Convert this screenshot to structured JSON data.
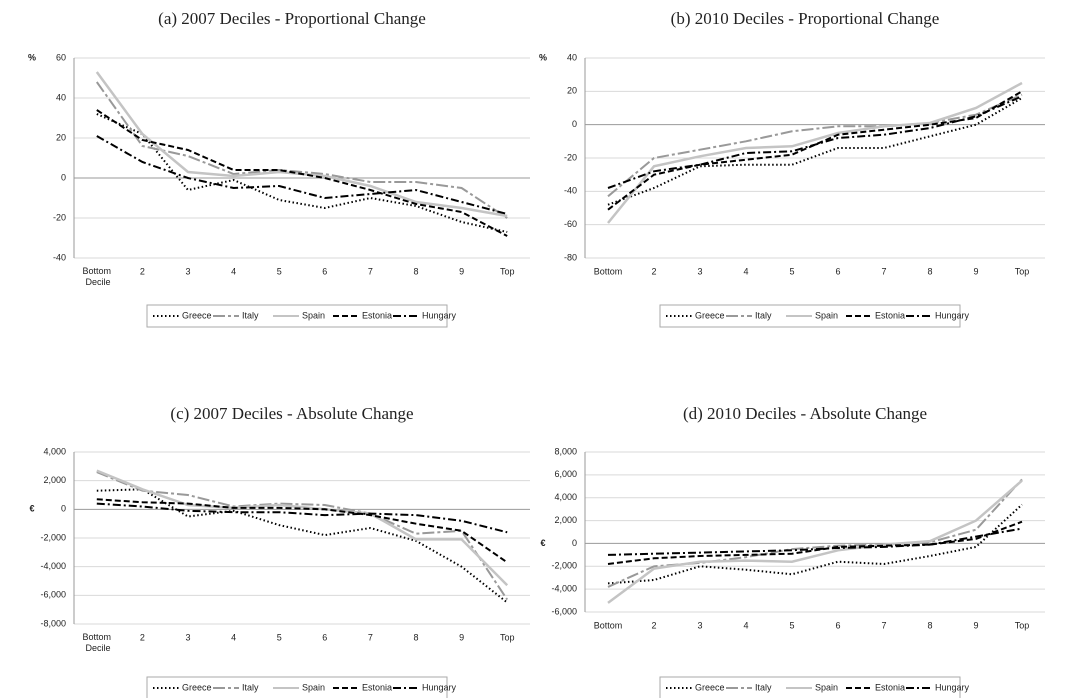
{
  "chart_data": [
    {
      "type": "line",
      "title": "(a) 2007 Deciles - Proportional Change",
      "ylabel": "%",
      "ylabel_position": "top",
      "categories": [
        "Bottom Decile",
        "2",
        "3",
        "4",
        "5",
        "6",
        "7",
        "8",
        "9",
        "Top"
      ],
      "ylim": [
        -40,
        60
      ],
      "yticks": [
        -40,
        -20,
        0,
        20,
        40,
        60
      ],
      "grid": true,
      "legend": "bottom",
      "series": [
        {
          "name": "Greece",
          "color": "#000000",
          "dash": "1.5,2.5",
          "values": [
            32,
            22,
            -6,
            -1,
            -11,
            -15,
            -10,
            -14,
            -22,
            -27
          ]
        },
        {
          "name": "Italy",
          "color": "#999999",
          "dash": "12,3,3,3",
          "values": [
            48,
            16,
            11,
            2,
            4,
            2,
            -2,
            -2,
            -5,
            -20
          ]
        },
        {
          "name": "Spain",
          "color": "#c4c4c4",
          "dash": "none",
          "values": [
            53,
            22,
            3,
            1,
            3,
            1,
            -4,
            -12,
            -15,
            -19
          ]
        },
        {
          "name": "Estonia",
          "color": "#000000",
          "dash": "6,3",
          "values": [
            34,
            19,
            14,
            4,
            4,
            0,
            -6,
            -13,
            -17,
            -29
          ]
        },
        {
          "name": "Hungary",
          "color": "#000000",
          "dash": "8,3,2,3",
          "values": [
            21,
            8,
            0,
            -5,
            -4,
            -10,
            -8,
            -6,
            -12,
            -18
          ]
        }
      ]
    },
    {
      "type": "line",
      "title": "(b) 2010 Deciles - Proportional Change",
      "ylabel": "%",
      "ylabel_position": "top",
      "categories": [
        "Bottom",
        "2",
        "3",
        "4",
        "5",
        "6",
        "7",
        "8",
        "9",
        "Top"
      ],
      "ylim": [
        -80,
        40
      ],
      "yticks": [
        -80,
        -60,
        -40,
        -20,
        0,
        20,
        40
      ],
      "grid": true,
      "legend": "bottom",
      "series": [
        {
          "name": "Greece",
          "color": "#000000",
          "dash": "1.5,2.5",
          "values": [
            -48,
            -38,
            -25,
            -24,
            -24,
            -14,
            -14,
            -7,
            0,
            16
          ]
        },
        {
          "name": "Italy",
          "color": "#999999",
          "dash": "12,3,3,3",
          "values": [
            -43,
            -20,
            -15,
            -10,
            -4,
            -1,
            -1,
            1,
            6,
            18
          ]
        },
        {
          "name": "Spain",
          "color": "#c4c4c4",
          "dash": "none",
          "values": [
            -59,
            -25,
            -19,
            -14,
            -13,
            -5,
            -1,
            1,
            10,
            25
          ]
        },
        {
          "name": "Estonia",
          "color": "#000000",
          "dash": "6,3",
          "values": [
            -51,
            -30,
            -24,
            -21,
            -18,
            -6,
            -3,
            0,
            4,
            20
          ]
        },
        {
          "name": "Hungary",
          "color": "#000000",
          "dash": "8,3,2,3",
          "values": [
            -38,
            -28,
            -24,
            -17,
            -16,
            -8,
            -6,
            -2,
            5,
            17
          ]
        }
      ]
    },
    {
      "type": "line",
      "title": "(c) 2007 Deciles - Absolute Change",
      "ylabel": "€",
      "ylabel_position": "zero",
      "categories": [
        "Bottom Decile",
        "2",
        "3",
        "4",
        "5",
        "6",
        "7",
        "8",
        "9",
        "Top"
      ],
      "ylim": [
        -8000,
        4000
      ],
      "yticks": [
        {
          "value": -8000,
          "label": "-8,000"
        },
        {
          "value": -6000,
          "label": "-6,000"
        },
        {
          "value": -4000,
          "label": "-4,000"
        },
        {
          "value": -2000,
          "label": "-2,000"
        },
        0,
        {
          "value": 2000,
          "label": "2,000"
        },
        {
          "value": 4000,
          "label": "4,000"
        }
      ],
      "grid": true,
      "legend": "bottom",
      "series": [
        {
          "name": "Greece",
          "color": "#000000",
          "dash": "1.5,2.5",
          "values": [
            1300,
            1400,
            -500,
            -100,
            -1100,
            -1800,
            -1300,
            -2200,
            -4000,
            -6500
          ]
        },
        {
          "name": "Italy",
          "color": "#999999",
          "dash": "12,3,3,3",
          "values": [
            2600,
            1300,
            1000,
            200,
            400,
            300,
            -300,
            -1700,
            -1500,
            -6300
          ]
        },
        {
          "name": "Spain",
          "color": "#c4c4c4",
          "dash": "none",
          "values": [
            2700,
            1400,
            300,
            100,
            300,
            0,
            -300,
            -2100,
            -2100,
            -5300
          ]
        },
        {
          "name": "Estonia",
          "color": "#000000",
          "dash": "6,3",
          "values": [
            700,
            500,
            400,
            100,
            100,
            0,
            -400,
            -1000,
            -1500,
            -3700
          ]
        },
        {
          "name": "Hungary",
          "color": "#000000",
          "dash": "8,3,2,3",
          "values": [
            400,
            200,
            -100,
            -200,
            -200,
            -400,
            -300,
            -400,
            -800,
            -1600
          ]
        }
      ]
    },
    {
      "type": "line",
      "title": "(d) 2010 Deciles - Absolute Change",
      "ylabel": "€",
      "ylabel_position": "zero",
      "categories": [
        "Bottom",
        "2",
        "3",
        "4",
        "5",
        "6",
        "7",
        "8",
        "9",
        "Top"
      ],
      "ylim": [
        -6000,
        8000
      ],
      "yticks": [
        {
          "value": -6000,
          "label": "-6,000"
        },
        {
          "value": -4000,
          "label": "-4,000"
        },
        {
          "value": -2000,
          "label": "-2,000"
        },
        0,
        {
          "value": 2000,
          "label": "2,000"
        },
        {
          "value": 4000,
          "label": "4,000"
        },
        {
          "value": 6000,
          "label": "6,000"
        },
        {
          "value": 8000,
          "label": "8,000"
        }
      ],
      "grid": true,
      "legend": "bottom",
      "series": [
        {
          "name": "Greece",
          "color": "#000000",
          "dash": "1.5,2.5",
          "values": [
            -3500,
            -3200,
            -2000,
            -2300,
            -2700,
            -1600,
            -1800,
            -1100,
            -300,
            3400
          ]
        },
        {
          "name": "Italy",
          "color": "#999999",
          "dash": "12,3,3,3",
          "values": [
            -3800,
            -2000,
            -1700,
            -1200,
            -500,
            -200,
            -100,
            100,
            1200,
            5600
          ]
        },
        {
          "name": "Spain",
          "color": "#c4c4c4",
          "dash": "none",
          "values": [
            -5200,
            -2200,
            -1600,
            -1500,
            -1600,
            -600,
            -100,
            200,
            2000,
            5500
          ]
        },
        {
          "name": "Estonia",
          "color": "#000000",
          "dash": "6,3",
          "values": [
            -1800,
            -1300,
            -1100,
            -1000,
            -900,
            -300,
            -200,
            -100,
            400,
            1900
          ]
        },
        {
          "name": "Hungary",
          "color": "#000000",
          "dash": "8,3,2,3",
          "values": [
            -1000,
            -900,
            -800,
            -700,
            -600,
            -400,
            -300,
            -100,
            600,
            1300
          ]
        }
      ]
    }
  ]
}
